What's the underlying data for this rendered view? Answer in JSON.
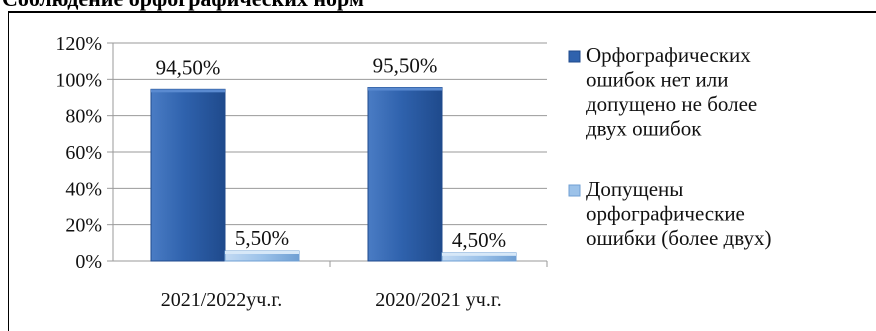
{
  "document": {
    "heading": "Соблюдение орфографических норм"
  },
  "colors": {
    "series_1": "#2f62ad",
    "series_2": "#9cc2e9",
    "grid": "#9a9a9a"
  },
  "chart_data": {
    "type": "bar",
    "categories": [
      "2021/2022уч.г.",
      "2020/2021 уч.г."
    ],
    "series": [
      {
        "name": "Орфографических ошибок нет или допущено не более двух ошибок",
        "values": [
          94.5,
          95.5
        ],
        "labels": [
          "94,50%",
          "95,50%"
        ]
      },
      {
        "name": "Допущены орфографические ошибки (более двух)",
        "values": [
          5.5,
          4.5
        ],
        "labels": [
          "5,50%",
          "4,50%"
        ]
      }
    ],
    "y_ticks": [
      "0%",
      "20%",
      "40%",
      "60%",
      "80%",
      "100%",
      "120%"
    ],
    "ylim": [
      0,
      120
    ],
    "grid": true,
    "legend_position": "right",
    "xlabel": "",
    "ylabel": ""
  }
}
